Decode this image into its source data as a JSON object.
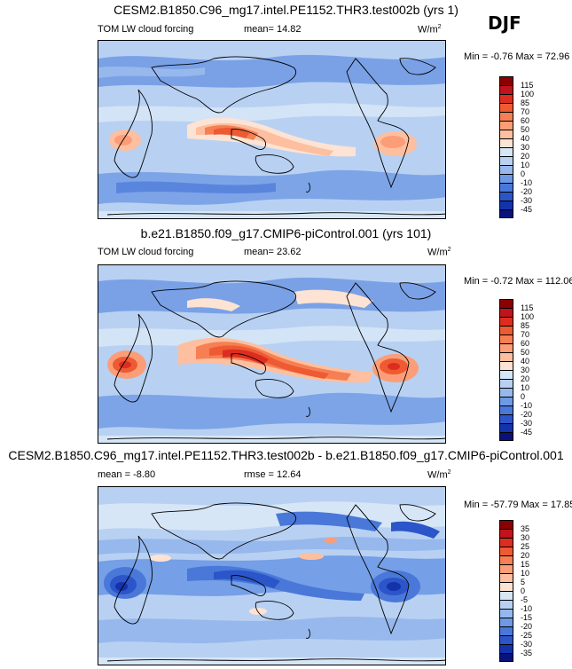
{
  "season": "DJF",
  "panels": [
    {
      "title": "CESM2.B1850.C96_mg17.intel.PE1152.THR3.test002b (yrs 1)",
      "variable": "TOM LW cloud forcing",
      "stat1": "mean=  14.82",
      "stat2": "",
      "units": "W/m",
      "units_sup": "2",
      "minmax": "Min =  -0.76 Max =  72.96",
      "levels": [
        "115",
        "100",
        "85",
        "70",
        "60",
        "50",
        "40",
        "30",
        "20",
        "10",
        "0",
        "-10",
        "-20",
        "-30",
        "-45"
      ],
      "colors": [
        "#8b0000",
        "#c0131b",
        "#dd2d20",
        "#ee5a32",
        "#f67f53",
        "#fb9e78",
        "#fdbf9f",
        "#fde3d3",
        "#d6e6f7",
        "#b8d1f2",
        "#97b8ec",
        "#6e99e4",
        "#4a78d9",
        "#2b55c8",
        "#1433aa",
        "#08127a"
      ]
    },
    {
      "title": "b.e21.B1850.f09_g17.CMIP6-piControl.001 (yrs 101)",
      "variable": "TOM LW cloud forcing",
      "stat1": "mean=  23.62",
      "stat2": "",
      "units": "W/m",
      "units_sup": "2",
      "minmax": "Min =  -0.72 Max =  112.06",
      "levels": [
        "115",
        "100",
        "85",
        "70",
        "60",
        "50",
        "40",
        "30",
        "20",
        "10",
        "0",
        "-10",
        "-20",
        "-30",
        "-45"
      ],
      "colors": [
        "#8b0000",
        "#c0131b",
        "#dd2d20",
        "#ee5a32",
        "#f67f53",
        "#fb9e78",
        "#fdbf9f",
        "#fde3d3",
        "#d6e6f7",
        "#b8d1f2",
        "#97b8ec",
        "#6e99e4",
        "#4a78d9",
        "#2b55c8",
        "#1433aa",
        "#08127a"
      ]
    },
    {
      "title": "CESM2.B1850.C96_mg17.intel.PE1152.THR3.test002b - b.e21.B1850.f09_g17.CMIP6-piControl.001",
      "variable": "",
      "stat1": "mean =  -8.80",
      "stat2": "rmse =  12.64",
      "units": "W/m",
      "units_sup": "2",
      "minmax": "Min = -57.79 Max =  17.85",
      "levels": [
        "35",
        "30",
        "25",
        "20",
        "15",
        "10",
        "5",
        "0",
        "-5",
        "-10",
        "-15",
        "-20",
        "-25",
        "-30",
        "-35"
      ],
      "colors": [
        "#8b0000",
        "#c0131b",
        "#dd2d20",
        "#ee5a32",
        "#f67f53",
        "#fb9e78",
        "#fdbf9f",
        "#fde3d3",
        "#d6e6f7",
        "#b8d1f2",
        "#97b8ec",
        "#6e99e4",
        "#4a78d9",
        "#2b55c8",
        "#1433aa",
        "#08127a"
      ]
    }
  ]
}
